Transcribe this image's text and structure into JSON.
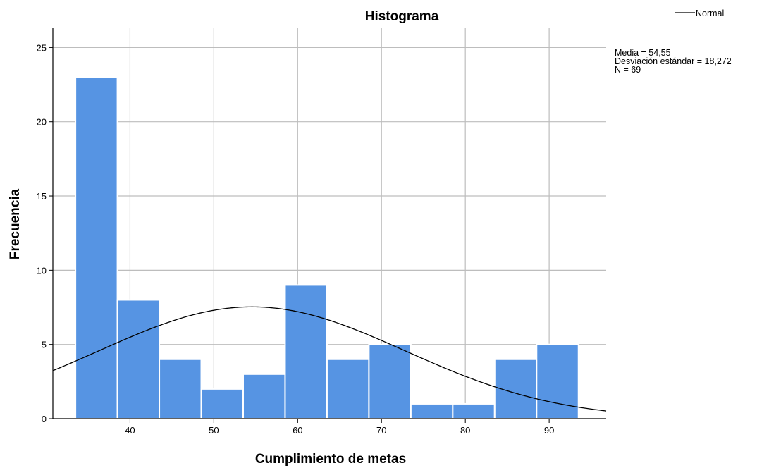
{
  "chart_data": {
    "type": "bar",
    "title": "Histograma",
    "xlabel": "Cumplimiento de metas",
    "ylabel": "Frecuencia",
    "xlim": [
      30.8,
      96.8
    ],
    "ylim": [
      0,
      26.3
    ],
    "xticks": [
      40,
      50,
      60,
      70,
      80,
      90
    ],
    "yticks": [
      0,
      5,
      10,
      15,
      20,
      25
    ],
    "bin_width": 5,
    "bins": [
      {
        "start": 33.5,
        "end": 38.5,
        "count": 23
      },
      {
        "start": 38.5,
        "end": 43.5,
        "count": 8
      },
      {
        "start": 43.5,
        "end": 48.5,
        "count": 4
      },
      {
        "start": 48.5,
        "end": 53.5,
        "count": 2
      },
      {
        "start": 53.5,
        "end": 58.5,
        "count": 3
      },
      {
        "start": 58.5,
        "end": 63.5,
        "count": 9
      },
      {
        "start": 63.5,
        "end": 68.5,
        "count": 4
      },
      {
        "start": 68.5,
        "end": 73.5,
        "count": 5
      },
      {
        "start": 73.5,
        "end": 78.5,
        "count": 1
      },
      {
        "start": 78.5,
        "end": 83.5,
        "count": 1
      },
      {
        "start": 83.5,
        "end": 88.5,
        "count": 4
      },
      {
        "start": 88.5,
        "end": 93.5,
        "count": 5
      }
    ],
    "normal_curve": {
      "mean": 54.55,
      "sd": 18.272,
      "n": 69
    },
    "stats": {
      "media": "Media = 54,55",
      "desviacion": "Desviación estándar = 18,272",
      "n": "N = 69"
    },
    "legend": {
      "label": "Normal",
      "position": "top-right"
    },
    "grid": true,
    "colors": {
      "bar": "#5694e3",
      "bar_edge": "#ffffff",
      "grid": "#bdbdbd",
      "curve": "#000000",
      "axis": "#000000"
    }
  }
}
